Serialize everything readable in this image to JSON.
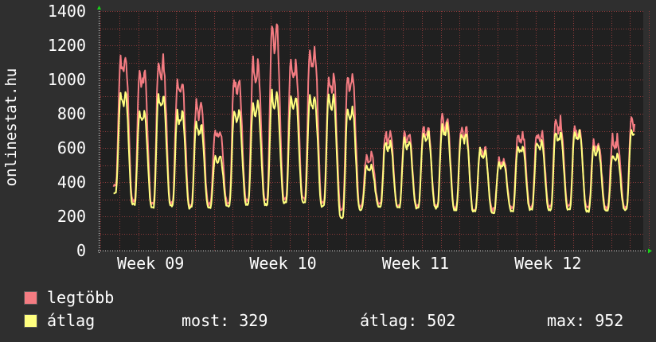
{
  "chart_data": {
    "type": "line",
    "title": "",
    "xlabel": "",
    "ylabel": "onlinestat.hu",
    "ylim": [
      0,
      1400
    ],
    "xlim": [
      0,
      4.1
    ],
    "yticks": [
      0,
      200,
      400,
      600,
      800,
      1000,
      1200,
      1400
    ],
    "xticks": [
      {
        "label": "Week 09",
        "pos": 0.38
      },
      {
        "label": "Week 10",
        "pos": 1.38
      },
      {
        "label": "Week 11",
        "pos": 2.38
      },
      {
        "label": "Week 12",
        "pos": 3.38
      }
    ],
    "grid": true,
    "legend_placement": "bottom-left",
    "series": [
      {
        "name": "legtöbb",
        "color": "#f47c82",
        "days": [
          {
            "d": 0,
            "peak": 1140,
            "trough": 380
          },
          {
            "d": 1,
            "peak": 1060,
            "trough": 290
          },
          {
            "d": 2,
            "peak": 1110,
            "trough": 270
          },
          {
            "d": 3,
            "peak": 1000,
            "trough": 280
          },
          {
            "d": 4,
            "peak": 860,
            "trough": 260
          },
          {
            "d": 5,
            "peak": 720,
            "trough": 270
          },
          {
            "d": 6,
            "peak": 1020,
            "trough": 280
          },
          {
            "d": 7,
            "peak": 1100,
            "trough": 290
          },
          {
            "d": 8,
            "peak": 1310,
            "trough": 290
          },
          {
            "d": 9,
            "peak": 1110,
            "trough": 300
          },
          {
            "d": 10,
            "peak": 1200,
            "trough": 300
          },
          {
            "d": 11,
            "peak": 1030,
            "trough": 280
          },
          {
            "d": 12,
            "peak": 1030,
            "trough": 240
          },
          {
            "d": 13,
            "peak": 560,
            "trough": 260
          },
          {
            "d": 14,
            "peak": 690,
            "trough": 280
          },
          {
            "d": 15,
            "peak": 680,
            "trough": 260
          },
          {
            "d": 16,
            "peak": 720,
            "trough": 260
          },
          {
            "d": 17,
            "peak": 780,
            "trough": 260
          },
          {
            "d": 18,
            "peak": 720,
            "trough": 250
          },
          {
            "d": 19,
            "peak": 600,
            "trough": 240
          },
          {
            "d": 20,
            "peak": 540,
            "trough": 240
          },
          {
            "d": 21,
            "peak": 680,
            "trough": 250
          },
          {
            "d": 22,
            "peak": 700,
            "trough": 260
          },
          {
            "d": 23,
            "peak": 760,
            "trough": 260
          },
          {
            "d": 24,
            "peak": 720,
            "trough": 260
          },
          {
            "d": 25,
            "peak": 640,
            "trough": 250
          },
          {
            "d": 26,
            "peak": 660,
            "trough": 250
          },
          {
            "d": 27,
            "peak": 780,
            "trough": 250
          },
          {
            "d": 28,
            "peak": 800,
            "trough": 260
          },
          {
            "d": 29,
            "peak": 830,
            "trough": 320
          }
        ]
      },
      {
        "name": "átlag",
        "color": "#ffff7f",
        "days": [
          {
            "d": 0,
            "peak": 920,
            "trough": 340
          },
          {
            "d": 1,
            "peak": 820,
            "trough": 270
          },
          {
            "d": 2,
            "peak": 910,
            "trough": 250
          },
          {
            "d": 3,
            "peak": 810,
            "trough": 260
          },
          {
            "d": 4,
            "peak": 740,
            "trough": 250
          },
          {
            "d": 5,
            "peak": 560,
            "trough": 250
          },
          {
            "d": 6,
            "peak": 820,
            "trough": 260
          },
          {
            "d": 7,
            "peak": 860,
            "trough": 270
          },
          {
            "d": 8,
            "peak": 920,
            "trough": 270
          },
          {
            "d": 9,
            "peak": 900,
            "trough": 280
          },
          {
            "d": 10,
            "peak": 910,
            "trough": 280
          },
          {
            "d": 11,
            "peak": 900,
            "trough": 260
          },
          {
            "d": 12,
            "peak": 830,
            "trough": 190
          },
          {
            "d": 13,
            "peak": 500,
            "trough": 240
          },
          {
            "d": 14,
            "peak": 640,
            "trough": 260
          },
          {
            "d": 15,
            "peak": 650,
            "trough": 250
          },
          {
            "d": 16,
            "peak": 700,
            "trough": 250
          },
          {
            "d": 17,
            "peak": 740,
            "trough": 250
          },
          {
            "d": 18,
            "peak": 690,
            "trough": 240
          },
          {
            "d": 19,
            "peak": 590,
            "trough": 230
          },
          {
            "d": 20,
            "peak": 520,
            "trough": 220
          },
          {
            "d": 21,
            "peak": 620,
            "trough": 230
          },
          {
            "d": 22,
            "peak": 640,
            "trough": 240
          },
          {
            "d": 23,
            "peak": 700,
            "trough": 240
          },
          {
            "d": 24,
            "peak": 700,
            "trough": 240
          },
          {
            "d": 25,
            "peak": 600,
            "trough": 230
          },
          {
            "d": 26,
            "peak": 560,
            "trough": 230
          },
          {
            "d": 27,
            "peak": 720,
            "trough": 240
          },
          {
            "d": 28,
            "peak": 720,
            "trough": 250
          },
          {
            "d": 29,
            "peak": 730,
            "trough": 310
          }
        ]
      }
    ]
  },
  "legend": {
    "items": [
      {
        "label": "legtöbb",
        "color": "#f47c82"
      },
      {
        "label": "átlag",
        "color": "#ffff7f"
      }
    ],
    "stats": {
      "most": "most: 329",
      "atlag": "átlag: 502",
      "max": "max: 952"
    }
  },
  "colors": {
    "background": "#2f2f2f",
    "plot_background": "#202020",
    "grid": "#8b3a3a",
    "axis_arrow": "#19d219",
    "text": "#ffffff"
  }
}
